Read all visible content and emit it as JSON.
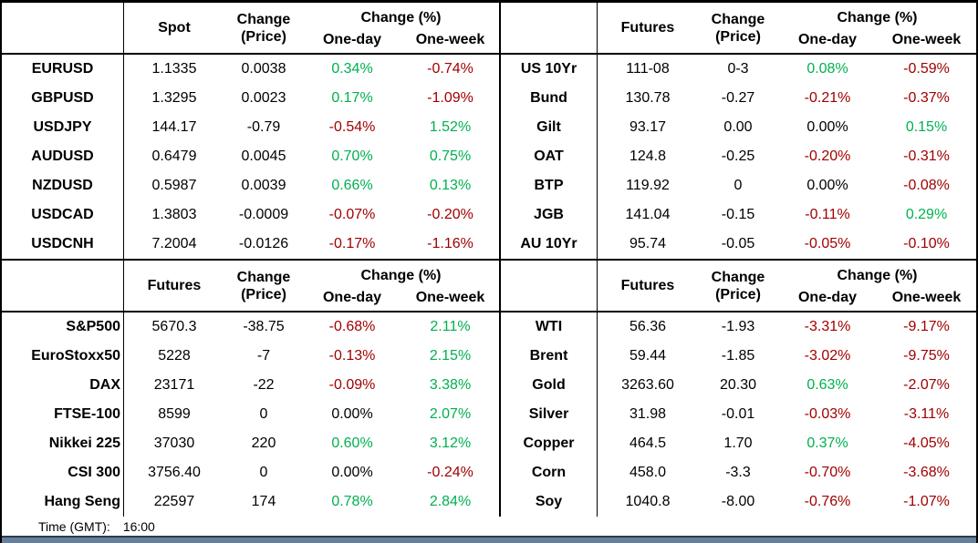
{
  "colors": {
    "positive": "#00B050",
    "negative": "#A00000",
    "neutral": "#000000",
    "grid_line": "#000000",
    "bottom_bar": "#64809E",
    "bottom_bar_edge": "#2E3A4A"
  },
  "columns": {
    "change_line1": "Change",
    "change_line2": "(Price)",
    "change_pct": "Change (%)",
    "one_day": "One-day",
    "one_week": "One-week"
  },
  "tables": {
    "fx": {
      "value_col": "Spot",
      "rows": [
        [
          "EURUSD",
          "1.1335",
          "0.0038",
          "0.34%",
          "-0.74%"
        ],
        [
          "GBPUSD",
          "1.3295",
          "0.0023",
          "0.17%",
          "-1.09%"
        ],
        [
          "USDJPY",
          "144.17",
          "-0.79",
          "-0.54%",
          "1.52%"
        ],
        [
          "AUDUSD",
          "0.6479",
          "0.0045",
          "0.70%",
          "0.75%"
        ],
        [
          "NZDUSD",
          "0.5987",
          "0.0039",
          "0.66%",
          "0.13%"
        ],
        [
          "USDCAD",
          "1.3803",
          "-0.0009",
          "-0.07%",
          "-0.20%"
        ],
        [
          "USDCNH",
          "7.2004",
          "-0.0126",
          "-0.17%",
          "-1.16%"
        ]
      ]
    },
    "bonds": {
      "value_col": "Futures",
      "rows": [
        [
          "US 10Yr",
          "111-08",
          "0-3",
          "0.08%",
          "-0.59%"
        ],
        [
          "Bund",
          "130.78",
          "-0.27",
          "-0.21%",
          "-0.37%"
        ],
        [
          "Gilt",
          "93.17",
          "0.00",
          "0.00%",
          "0.15%"
        ],
        [
          "OAT",
          "124.8",
          "-0.25",
          "-0.20%",
          "-0.31%"
        ],
        [
          "BTP",
          "119.92",
          "0",
          "0.00%",
          "-0.08%"
        ],
        [
          "JGB",
          "141.04",
          "-0.15",
          "-0.11%",
          "0.29%"
        ],
        [
          "AU 10Yr",
          "95.74",
          "-0.05",
          "-0.05%",
          "-0.10%"
        ]
      ]
    },
    "equities": {
      "value_col": "Futures",
      "rows": [
        [
          "S&P500",
          "5670.3",
          "-38.75",
          "-0.68%",
          "2.11%"
        ],
        [
          "EuroStoxx50",
          "5228",
          "-7",
          "-0.13%",
          "2.15%"
        ],
        [
          "DAX",
          "23171",
          "-22",
          "-0.09%",
          "3.38%"
        ],
        [
          "FTSE-100",
          "8599",
          "0",
          "0.00%",
          "2.07%"
        ],
        [
          "Nikkei 225",
          "37030",
          "220",
          "0.60%",
          "3.12%"
        ],
        [
          "CSI 300",
          "3756.40",
          "0",
          "0.00%",
          "-0.24%"
        ],
        [
          "Hang Seng",
          "22597",
          "174",
          "0.78%",
          "2.84%"
        ]
      ]
    },
    "commodities": {
      "value_col": "Futures",
      "rows": [
        [
          "WTI",
          "56.36",
          "-1.93",
          "-3.31%",
          "-9.17%"
        ],
        [
          "Brent",
          "59.44",
          "-1.85",
          "-3.02%",
          "-9.75%"
        ],
        [
          "Gold",
          "3263.60",
          "20.30",
          "0.63%",
          "-2.07%"
        ],
        [
          "Silver",
          "31.98",
          "-0.01",
          "-0.03%",
          "-3.11%"
        ],
        [
          "Copper",
          "464.5",
          "1.70",
          "0.37%",
          "-4.05%"
        ],
        [
          "Corn",
          "458.0",
          "-3.3",
          "-0.70%",
          "-3.68%"
        ],
        [
          "Soy",
          "1040.8",
          "-8.00",
          "-0.76%",
          "-1.07%"
        ]
      ]
    }
  },
  "footer": {
    "time_label": "Time (GMT):",
    "time_value": "16:00"
  }
}
